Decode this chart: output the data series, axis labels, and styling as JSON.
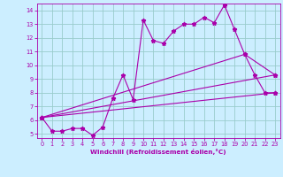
{
  "xlabel": "Windchill (Refroidissement éolien,°C)",
  "xlim": [
    -0.5,
    23.5
  ],
  "ylim": [
    4.7,
    14.5
  ],
  "xticks": [
    0,
    1,
    2,
    3,
    4,
    5,
    6,
    7,
    8,
    9,
    10,
    11,
    12,
    13,
    14,
    15,
    16,
    17,
    18,
    19,
    20,
    21,
    22,
    23
  ],
  "yticks": [
    5,
    6,
    7,
    8,
    9,
    10,
    11,
    12,
    13,
    14
  ],
  "background_color": "#cceeff",
  "line_color": "#aa00aa",
  "grid_color": "#99cccc",
  "line1_x": [
    0,
    1,
    2,
    3,
    4,
    5,
    6,
    7,
    8,
    9,
    10,
    11,
    12,
    13,
    14,
    15,
    16,
    17,
    18,
    19,
    20,
    21,
    22,
    23
  ],
  "line1_y": [
    6.2,
    5.2,
    5.2,
    5.4,
    5.4,
    4.9,
    5.5,
    7.6,
    9.3,
    7.5,
    13.3,
    11.8,
    11.6,
    12.5,
    13.0,
    13.0,
    13.5,
    13.1,
    14.4,
    12.6,
    10.8,
    9.3,
    8.0,
    8.0
  ],
  "line2_x": [
    0,
    23
  ],
  "line2_y": [
    6.2,
    8.0
  ],
  "line3_x": [
    0,
    20,
    23
  ],
  "line3_y": [
    6.2,
    10.8,
    9.3
  ],
  "line4_x": [
    0,
    23
  ],
  "line4_y": [
    6.2,
    9.3
  ]
}
